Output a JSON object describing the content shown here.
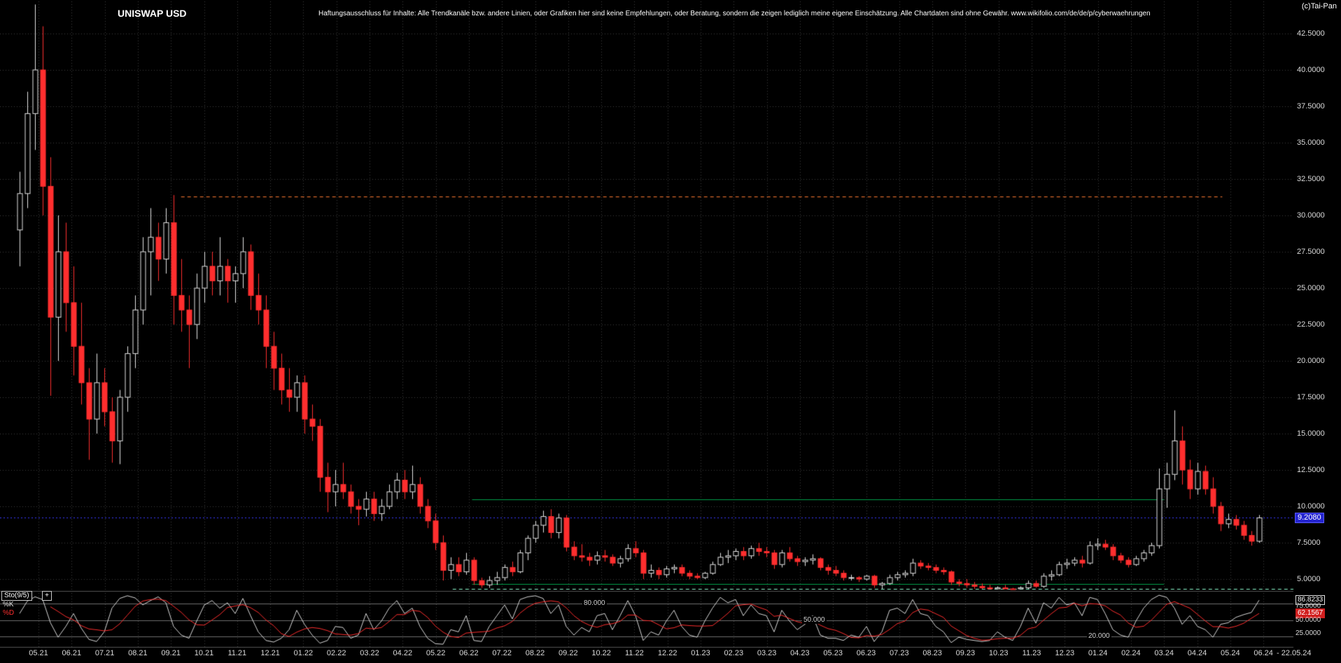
{
  "header": {
    "title": "UNISWAP USD",
    "disclaimer": "Haftungsausschluss für Inhalte: Alle Trendkanäle bzw. andere Linien, oder Grafiken hier sind keine Empfehlungen, oder Beratung, sondern die zeigen lediglich meine eigene Einschätzung. Alle Chartdaten sind ohne Gewähr.  www.wikifolio.com/de/de/p/cyberwaehrungen",
    "copyright": "(c)Tai-Pan"
  },
  "icons": {
    "expand": "+"
  },
  "y_axis": {
    "labels": [
      "42.5000",
      "40.0000",
      "37.5000",
      "35.0000",
      "32.5000",
      "30.0000",
      "27.5000",
      "25.0000",
      "22.5000",
      "20.0000",
      "17.5000",
      "15.0000",
      "12.5000",
      "10.0000",
      "7.5000",
      "5.0000"
    ],
    "current_price_label": "9.2080"
  },
  "x_axis": {
    "months": [
      "05.21",
      "06.21",
      "07.21",
      "08.21",
      "09.21",
      "10.21",
      "11.21",
      "12.21",
      "01.22",
      "02.22",
      "03.22",
      "04.22",
      "05.22",
      "06.22",
      "07.22",
      "08.22",
      "09.22",
      "10.22",
      "11.22",
      "12.22",
      "01.23",
      "02.23",
      "03.23",
      "04.23",
      "05.23",
      "06.23",
      "07.23",
      "08.23",
      "09.23",
      "10.23",
      "11.23",
      "12.23",
      "01.24",
      "02.24",
      "03.24",
      "04.24",
      "05.24",
      "06.24"
    ],
    "end_label": "- 22.05.24"
  },
  "indicator": {
    "name_label": "Sto(9/5)",
    "k_label": "%K",
    "d_label": "%D",
    "level_labels": [
      "80.000",
      "50.000",
      "20.000"
    ],
    "right_labels": {
      "k_value": "86.8233",
      "upper": "75.0000",
      "d_value": "62.1567",
      "mid": "50.0000",
      "lower": "25.0000"
    }
  },
  "colors": {
    "background": "#000000",
    "grid": "#3d3d3d",
    "up_candle": "#e6e6e6",
    "down_candle": "#ff2e2e",
    "axis_text": "#d9d9d9",
    "orange_line": "#ff7a30",
    "blue_line": "#3b3bff",
    "green_line": "#00a14b",
    "mint_line": "#8fffd2",
    "current_price_bg": "#2424cf",
    "stoch_k": "#d9d9d9",
    "stoch_d": "#ff2e2e",
    "stoch_level": "#6e6e6e",
    "separator": "#565656"
  },
  "chart_data": {
    "type": "candlestick",
    "title": "UNISWAP USD",
    "x_range": [
      "04.2021",
      "22.05.24"
    ],
    "resolution": "weekly-approximation",
    "last_price": 9.208,
    "price_axis": {
      "min": 4.2,
      "max": 44.5,
      "ticks": [
        42.5,
        40,
        37.5,
        35,
        32.5,
        30,
        27.5,
        25,
        22.5,
        20,
        17.5,
        15,
        12.5,
        10,
        7.5,
        5
      ]
    },
    "grid": true,
    "candles": [
      [
        29,
        33,
        26.5,
        31.5
      ],
      [
        31.5,
        38.5,
        30.5,
        37
      ],
      [
        37,
        44.5,
        34.5,
        40
      ],
      [
        40,
        43,
        30,
        32
      ],
      [
        32,
        34,
        17.6,
        23
      ],
      [
        23,
        30,
        20,
        27.5
      ],
      [
        27.5,
        29.5,
        22,
        24
      ],
      [
        24,
        26.5,
        19,
        21
      ],
      [
        21,
        24,
        17,
        18.5
      ],
      [
        18.5,
        19.5,
        13.2,
        16
      ],
      [
        16,
        20.5,
        15,
        18.5
      ],
      [
        18.5,
        19.5,
        15.5,
        16.5
      ],
      [
        16.5,
        17.5,
        13,
        14.5
      ],
      [
        14.5,
        18,
        12.9,
        17.5
      ],
      [
        17.5,
        21,
        16.5,
        20.5
      ],
      [
        20.5,
        24.5,
        19.5,
        23.5
      ],
      [
        23.5,
        28.5,
        22.5,
        27.5
      ],
      [
        27.5,
        30.5,
        24.5,
        28.5
      ],
      [
        28.5,
        29.5,
        25.5,
        27
      ],
      [
        27,
        30.5,
        26,
        29.5
      ],
      [
        29.5,
        31.4,
        22.5,
        24.5
      ],
      [
        24.5,
        27,
        22,
        23.5
      ],
      [
        23.5,
        24.5,
        19.5,
        22.5
      ],
      [
        22.5,
        26,
        21.5,
        25
      ],
      [
        25,
        27.5,
        24,
        26.5
      ],
      [
        26.5,
        27.5,
        24.5,
        25.5
      ],
      [
        25.5,
        28.5,
        24.5,
        26.5
      ],
      [
        26.5,
        27,
        24,
        25.5
      ],
      [
        25.5,
        26.5,
        24,
        26
      ],
      [
        26,
        28.5,
        25,
        27.5
      ],
      [
        27.5,
        28,
        23.5,
        24.5
      ],
      [
        24.5,
        26,
        22.5,
        23.5
      ],
      [
        23.5,
        24.5,
        19.5,
        21
      ],
      [
        21,
        22,
        18,
        19.5
      ],
      [
        19.5,
        20.5,
        17,
        18
      ],
      [
        18,
        19.5,
        16.5,
        17.5
      ],
      [
        17.5,
        19,
        16.5,
        18.5
      ],
      [
        18.5,
        19,
        15,
        16
      ],
      [
        16,
        17,
        14.5,
        15.5
      ],
      [
        15.5,
        16,
        11,
        12
      ],
      [
        12,
        13,
        9.6,
        11
      ],
      [
        11,
        12.5,
        10,
        11.5
      ],
      [
        11.5,
        13,
        10.5,
        11
      ],
      [
        11,
        11.5,
        9.5,
        10
      ],
      [
        10,
        10.5,
        8.7,
        9.8
      ],
      [
        9.8,
        11,
        9.3,
        10.5
      ],
      [
        10.5,
        11,
        9,
        9.5
      ],
      [
        9.5,
        10.5,
        9,
        10
      ],
      [
        10,
        11.5,
        9.8,
        11
      ],
      [
        11,
        12.3,
        10.5,
        11.8
      ],
      [
        11.8,
        12.5,
        10.5,
        11
      ],
      [
        11,
        12.8,
        10.5,
        11.5
      ],
      [
        11.5,
        12,
        9.5,
        10
      ],
      [
        10,
        10.5,
        8.5,
        9
      ],
      [
        9,
        9.5,
        7,
        7.5
      ],
      [
        7.5,
        8,
        4.9,
        5.6
      ],
      [
        5.6,
        6.5,
        5,
        6
      ],
      [
        6,
        6.5,
        5.2,
        5.5
      ],
      [
        5.5,
        6.8,
        5.3,
        6.3
      ],
      [
        6.3,
        6.5,
        4.6,
        4.9
      ],
      [
        4.9,
        5.1,
        4.4,
        4.6
      ],
      [
        4.6,
        5.2,
        4.4,
        4.9
      ],
      [
        4.9,
        5.5,
        4.6,
        5.1
      ],
      [
        5.1,
        6,
        4.9,
        5.8
      ],
      [
        5.8,
        6.2,
        5.2,
        5.5
      ],
      [
        5.5,
        7,
        5.4,
        6.8
      ],
      [
        6.8,
        8,
        6.3,
        7.8
      ],
      [
        7.8,
        9,
        7.5,
        8.7
      ],
      [
        8.7,
        9.7,
        8.2,
        9.3
      ],
      [
        9.3,
        9.8,
        7.8,
        8.2
      ],
      [
        8.2,
        9.5,
        7.8,
        9.2
      ],
      [
        9.2,
        9.4,
        6.9,
        7.2
      ],
      [
        7.2,
        7.6,
        6.3,
        6.6
      ],
      [
        6.6,
        7.4,
        6.2,
        6.5
      ],
      [
        6.5,
        6.8,
        5.9,
        6.3
      ],
      [
        6.3,
        6.9,
        6,
        6.6
      ],
      [
        6.6,
        7,
        6.2,
        6.5
      ],
      [
        6.5,
        6.7,
        5.9,
        6.1
      ],
      [
        6.1,
        6.6,
        5.8,
        6.4
      ],
      [
        6.4,
        7.4,
        6.2,
        7.1
      ],
      [
        7.1,
        7.6,
        6.5,
        6.8
      ],
      [
        6.8,
        7,
        5,
        5.4
      ],
      [
        5.4,
        6,
        5.1,
        5.6
      ],
      [
        5.6,
        5.8,
        5,
        5.3
      ],
      [
        5.3,
        5.9,
        5.1,
        5.7
      ],
      [
        5.7,
        6,
        5.4,
        5.8
      ],
      [
        5.8,
        6,
        5.2,
        5.4
      ],
      [
        5.4,
        5.6,
        5,
        5.2
      ],
      [
        5.2,
        5.4,
        5,
        5.1
      ],
      [
        5.1,
        5.5,
        5,
        5.4
      ],
      [
        5.4,
        6.2,
        5.3,
        6
      ],
      [
        6,
        6.8,
        5.9,
        6.5
      ],
      [
        6.5,
        7,
        6.1,
        6.6
      ],
      [
        6.6,
        7.1,
        6.3,
        6.9
      ],
      [
        6.9,
        7.2,
        6.3,
        6.6
      ],
      [
        6.6,
        7.3,
        6.4,
        7.1
      ],
      [
        7.1,
        7.5,
        6.6,
        6.9
      ],
      [
        6.9,
        7.2,
        6.5,
        6.8
      ],
      [
        6.8,
        7,
        5.7,
        6
      ],
      [
        6,
        7,
        5.8,
        6.8
      ],
      [
        6.8,
        7.2,
        6.2,
        6.4
      ],
      [
        6.4,
        6.6,
        5.9,
        6.2
      ],
      [
        6.2,
        6.5,
        5.9,
        6.3
      ],
      [
        6.3,
        6.7,
        6,
        6.4
      ],
      [
        6.4,
        6.5,
        5.6,
        5.8
      ],
      [
        5.8,
        6,
        5.3,
        5.6
      ],
      [
        5.6,
        5.9,
        5.2,
        5.4
      ],
      [
        5.4,
        5.6,
        4.9,
        5.1
      ],
      [
        5.1,
        5.3,
        4.9,
        5.1
      ],
      [
        5.1,
        5.2,
        4.8,
        5
      ],
      [
        5,
        5.3,
        4.9,
        5.2
      ],
      [
        5.2,
        5.3,
        4.4,
        4.6
      ],
      [
        4.6,
        4.8,
        4.2,
        4.7
      ],
      [
        4.7,
        5.3,
        4.6,
        5.1
      ],
      [
        5.1,
        5.5,
        4.9,
        5.3
      ],
      [
        5.3,
        5.6,
        5.1,
        5.4
      ],
      [
        5.4,
        6.4,
        5.2,
        6.1
      ],
      [
        6.1,
        6.3,
        5.7,
        5.9
      ],
      [
        5.9,
        6.1,
        5.6,
        5.8
      ],
      [
        5.8,
        6,
        5.4,
        5.6
      ],
      [
        5.6,
        5.8,
        5.3,
        5.5
      ],
      [
        5.5,
        5.6,
        4.6,
        4.8
      ],
      [
        4.8,
        5,
        4.5,
        4.7
      ],
      [
        4.7,
        5,
        4.4,
        4.6
      ],
      [
        4.6,
        4.8,
        4.3,
        4.5
      ],
      [
        4.5,
        4.7,
        4.2,
        4.4
      ],
      [
        4.4,
        4.6,
        4.2,
        4.3
      ],
      [
        4.3,
        4.5,
        4.2,
        4.4
      ],
      [
        4.4,
        4.6,
        4.1,
        4.3
      ],
      [
        4.3,
        4.4,
        4,
        4.2
      ],
      [
        4.2,
        4.5,
        4.1,
        4.4
      ],
      [
        4.4,
        4.9,
        4.3,
        4.7
      ],
      [
        4.7,
        4.9,
        4.4,
        4.5
      ],
      [
        4.5,
        5.4,
        4.4,
        5.2
      ],
      [
        5.2,
        5.6,
        4.9,
        5.3
      ],
      [
        5.3,
        6.2,
        5.2,
        6
      ],
      [
        6,
        6.4,
        5.7,
        6.1
      ],
      [
        6.1,
        6.5,
        5.9,
        6.3
      ],
      [
        6.3,
        6.6,
        5.8,
        6.1
      ],
      [
        6.1,
        7.6,
        6,
        7.3
      ],
      [
        7.3,
        7.8,
        7,
        7.4
      ],
      [
        7.4,
        7.7,
        7,
        7.2
      ],
      [
        7.2,
        7.4,
        6.3,
        6.6
      ],
      [
        6.6,
        6.8,
        6.1,
        6.3
      ],
      [
        6.3,
        6.5,
        5.8,
        6
      ],
      [
        6,
        6.6,
        5.9,
        6.4
      ],
      [
        6.4,
        7,
        6.2,
        6.8
      ],
      [
        6.8,
        7.5,
        6.6,
        7.3
      ],
      [
        7.3,
        12.6,
        7.1,
        11.2
      ],
      [
        11.2,
        13,
        9.9,
        12.2
      ],
      [
        12.2,
        16.6,
        11.8,
        14.5
      ],
      [
        14.5,
        15.5,
        11.5,
        12.5
      ],
      [
        12.5,
        13.2,
        10.5,
        11.2
      ],
      [
        11.2,
        13,
        10.8,
        12.4
      ],
      [
        12.4,
        12.8,
        10.8,
        11.2
      ],
      [
        11.2,
        12,
        9.5,
        10
      ],
      [
        10,
        10.3,
        8.3,
        8.8
      ],
      [
        8.8,
        9.5,
        8.5,
        9.1
      ],
      [
        9.1,
        9.4,
        8.4,
        8.7
      ],
      [
        8.7,
        9,
        7.7,
        8
      ],
      [
        8,
        8.3,
        7.3,
        7.6
      ],
      [
        7.6,
        9.4,
        7.5,
        9.208
      ]
    ],
    "overlays": {
      "h_lines": [
        {
          "name": "resistance-line-orange",
          "value": 31.3,
          "from": 0.14,
          "to": 0.945,
          "color": "orange_line",
          "dash": [
            5,
            4
          ]
        },
        {
          "name": "current-price-line",
          "value": 9.208,
          "from": 0,
          "to": 1,
          "color": "blue_line",
          "dash": [
            2,
            3
          ]
        },
        {
          "name": "resistance-line-green",
          "value": 10.5,
          "from": 0.365,
          "to": 0.9,
          "color": "green_line",
          "dash": null
        },
        {
          "name": "support-line-green",
          "value": 4.65,
          "from": 0.365,
          "to": 0.9,
          "color": "green_line",
          "dash": null
        },
        {
          "name": "support-line-mint",
          "value": 4.35,
          "from": 0.35,
          "to": 1,
          "color": "mint_line",
          "dash": [
            5,
            4
          ]
        }
      ]
    },
    "indicator": {
      "type": "stochastic",
      "params": "9/5",
      "range": [
        0,
        100
      ],
      "levels": [
        80,
        50,
        20
      ],
      "scale_ticks": [
        75,
        50,
        25
      ],
      "k_last": 86.8233,
      "d_last": 62.1567,
      "d_rule": "SMA5 of k_series",
      "k_series": [
        62,
        85,
        93,
        88,
        45,
        18,
        38,
        62,
        35,
        14,
        10,
        28,
        72,
        90,
        95,
        91,
        78,
        86,
        93,
        82,
        38,
        22,
        16,
        48,
        78,
        86,
        72,
        82,
        62,
        90,
        58,
        28,
        12,
        9,
        16,
        32,
        68,
        42,
        22,
        7,
        12,
        38,
        36,
        16,
        22,
        62,
        32,
        48,
        72,
        86,
        62,
        72,
        38,
        16,
        6,
        5,
        32,
        28,
        58,
        12,
        10,
        38,
        58,
        78,
        52,
        88,
        93,
        95,
        90,
        62,
        78,
        38,
        22,
        36,
        28,
        58,
        62,
        32,
        58,
        86,
        58,
        12,
        28,
        22,
        48,
        68,
        38,
        22,
        18,
        48,
        72,
        92,
        82,
        88,
        58,
        78,
        62,
        58,
        28,
        68,
        48,
        32,
        42,
        58,
        22,
        16,
        16,
        12,
        22,
        18,
        38,
        10,
        28,
        68,
        72,
        62,
        88,
        62,
        58,
        38,
        28,
        8,
        18,
        14,
        12,
        10,
        12,
        28,
        18,
        12,
        38,
        72,
        44,
        82,
        72,
        92,
        78,
        82,
        58,
        92,
        88,
        62,
        32,
        22,
        18,
        48,
        72,
        88,
        96,
        92,
        72,
        42,
        58,
        38,
        32,
        18,
        42,
        45,
        55,
        60,
        64,
        86.8
      ]
    }
  }
}
